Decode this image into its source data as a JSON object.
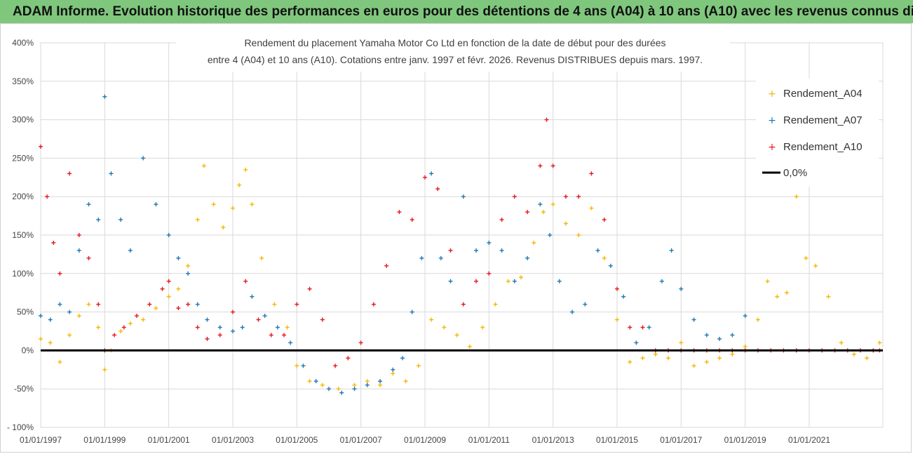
{
  "banner": {
    "title": "ADAM Informe. Evolution historique des performances en euros pour des détentions de 4 ans (A04) à 10 ans (A10) avec les revenus connus distribués"
  },
  "colors": {
    "banner_bg": "#7fc77d",
    "A04": "#f5b800",
    "A07": "#1f77b4",
    "A10": "#e8161b",
    "zero_line": "#000000",
    "grid": "#d9d9d9"
  },
  "chart_data": {
    "type": "scatter",
    "title_line1": "Rendement du placement Yamaha Motor Co Ltd en fonction de la date de début pour des durées",
    "title_line2": "entre 4 (A04) et 10 ans (A10). Cotations entre janv. 1997 et févr. 2026. Revenus DISTRIBUES depuis mars. 1997.",
    "xlabel": "",
    "ylabel": "",
    "xlim": [
      1997.0,
      2023.3
    ],
    "ylim": [
      -100,
      400
    ],
    "x_tick_labels": [
      "01/01/1997",
      "01/01/1999",
      "01/01/2001",
      "01/01/2003",
      "01/01/2005",
      "01/01/2007",
      "01/01/2009",
      "01/01/2011",
      "01/01/2013",
      "01/01/2015",
      "01/01/2017",
      "01/01/2019",
      "01/01/2021"
    ],
    "x_tick_years": [
      1997,
      1999,
      2001,
      2003,
      2005,
      2007,
      2009,
      2011,
      2013,
      2015,
      2017,
      2019,
      2021
    ],
    "y_tick_labels": [
      "- 100%",
      "-50%",
      "0%",
      "50%",
      "100%",
      "150%",
      "200%",
      "250%",
      "300%",
      "350%",
      "400%"
    ],
    "y_ticks": [
      -100,
      -50,
      0,
      50,
      100,
      150,
      200,
      250,
      300,
      350,
      400
    ],
    "grid": "vertical-and-horizontal",
    "legend_position": "top-right",
    "legend": [
      "Rendement_A04",
      "Rendement_A07",
      "Rendement_A10",
      "0,0%"
    ],
    "series": [
      {
        "name": "Rendement_A04",
        "marker": "+",
        "x": [
          1997.0,
          1997.3,
          1997.6,
          1997.9,
          1998.2,
          1998.5,
          1998.8,
          1999.0,
          1999.2,
          1999.5,
          1999.8,
          2000.2,
          2000.6,
          2001.0,
          2001.3,
          2001.6,
          2001.9,
          2002.1,
          2002.4,
          2002.7,
          2003.0,
          2003.2,
          2003.4,
          2003.6,
          2003.9,
          2004.3,
          2004.7,
          2005.0,
          2005.4,
          2005.8,
          2006.3,
          2006.8,
          2007.2,
          2007.6,
          2008.0,
          2008.4,
          2008.8,
          2009.2,
          2009.6,
          2010.0,
          2010.4,
          2010.8,
          2011.2,
          2011.6,
          2012.0,
          2012.4,
          2012.7,
          2013.0,
          2013.4,
          2013.8,
          2014.2,
          2014.6,
          2015.0,
          2015.4,
          2015.8,
          2016.2,
          2016.6,
          2017.0,
          2017.4,
          2017.8,
          2018.2,
          2018.6,
          2019.0,
          2019.4,
          2019.7,
          2020.0,
          2020.3,
          2020.6,
          2020.9,
          2021.2,
          2021.6,
          2022.0,
          2022.4,
          2022.8,
          2023.2
        ],
        "values": [
          15,
          10,
          -15,
          20,
          45,
          60,
          30,
          -25,
          0,
          25,
          35,
          40,
          55,
          70,
          80,
          110,
          170,
          240,
          190,
          160,
          185,
          215,
          235,
          190,
          120,
          60,
          30,
          -20,
          -40,
          -45,
          -50,
          -45,
          -40,
          -45,
          -30,
          -40,
          -20,
          40,
          30,
          20,
          5,
          30,
          60,
          90,
          95,
          140,
          180,
          190,
          165,
          150,
          185,
          120,
          40,
          -15,
          -10,
          -5,
          -10,
          10,
          -20,
          -15,
          -10,
          -5,
          5,
          40,
          90,
          70,
          75,
          200,
          120,
          110,
          70,
          10,
          -5,
          -10,
          10
        ]
      },
      {
        "name": "Rendement_A07",
        "marker": "+",
        "x": [
          1997.0,
          1997.3,
          1997.6,
          1997.9,
          1998.2,
          1998.5,
          1998.8,
          1999.0,
          1999.2,
          1999.5,
          1999.8,
          2000.2,
          2000.6,
          2001.0,
          2001.3,
          2001.6,
          2001.9,
          2002.2,
          2002.6,
          2003.0,
          2003.3,
          2003.6,
          2004.0,
          2004.4,
          2004.8,
          2005.2,
          2005.6,
          2006.0,
          2006.4,
          2006.8,
          2007.2,
          2007.6,
          2008.0,
          2008.3,
          2008.6,
          2008.9,
          2009.2,
          2009.5,
          2009.8,
          2010.2,
          2010.6,
          2011.0,
          2011.4,
          2011.8,
          2012.2,
          2012.6,
          2012.9,
          2013.2,
          2013.6,
          2014.0,
          2014.4,
          2014.8,
          2015.2,
          2015.6,
          2016.0,
          2016.4,
          2016.7,
          2017.0,
          2017.4,
          2017.8,
          2018.2,
          2018.6,
          2019.0
        ],
        "values": [
          45,
          40,
          60,
          50,
          130,
          190,
          170,
          330,
          230,
          170,
          130,
          250,
          190,
          150,
          120,
          100,
          60,
          40,
          30,
          25,
          30,
          70,
          45,
          30,
          10,
          -20,
          -40,
          -50,
          -55,
          -50,
          -45,
          -40,
          -25,
          -10,
          50,
          120,
          230,
          120,
          90,
          200,
          130,
          140,
          130,
          90,
          120,
          190,
          150,
          90,
          50,
          60,
          130,
          110,
          70,
          10,
          30,
          90,
          130,
          80,
          40,
          20,
          15,
          20,
          45
        ]
      },
      {
        "name": "Rendement_A10",
        "marker": "+",
        "x": [
          1997.0,
          1997.2,
          1997.4,
          1997.6,
          1997.9,
          1998.2,
          1998.5,
          1998.8,
          1999.0,
          1999.3,
          1999.6,
          2000.0,
          2000.4,
          2000.8,
          2001.0,
          2001.3,
          2001.6,
          2001.9,
          2002.2,
          2002.6,
          2003.0,
          2003.4,
          2003.8,
          2004.2,
          2004.6,
          2005.0,
          2005.4,
          2005.8,
          2006.2,
          2006.6,
          2007.0,
          2007.4,
          2007.8,
          2008.2,
          2008.6,
          2009.0,
          2009.4,
          2009.8,
          2010.2,
          2010.6,
          2011.0,
          2011.4,
          2011.8,
          2012.2,
          2012.6,
          2012.8,
          2013.0,
          2013.4,
          2013.8,
          2014.2,
          2014.6,
          2015.0,
          2015.4,
          2015.8,
          2016.2,
          2016.6,
          2017.0,
          2017.4,
          2017.8,
          2018.2,
          2018.6,
          2019.0,
          2019.4,
          2019.8,
          2020.2,
          2020.6,
          2021.0,
          2021.4,
          2021.8,
          2022.2,
          2022.6,
          2023.0,
          2023.2
        ],
        "values": [
          265,
          200,
          140,
          100,
          230,
          150,
          120,
          60,
          0,
          20,
          30,
          45,
          60,
          80,
          90,
          55,
          60,
          30,
          15,
          20,
          50,
          90,
          40,
          20,
          20,
          60,
          80,
          40,
          -20,
          -10,
          10,
          60,
          110,
          180,
          170,
          225,
          210,
          130,
          60,
          90,
          100,
          170,
          200,
          180,
          240,
          300,
          240,
          200,
          200,
          230,
          170,
          80,
          30,
          30,
          0,
          0,
          0,
          0,
          0,
          0,
          0,
          0,
          0,
          0,
          0,
          0,
          0,
          0,
          0,
          0,
          0,
          0,
          0
        ]
      }
    ]
  }
}
